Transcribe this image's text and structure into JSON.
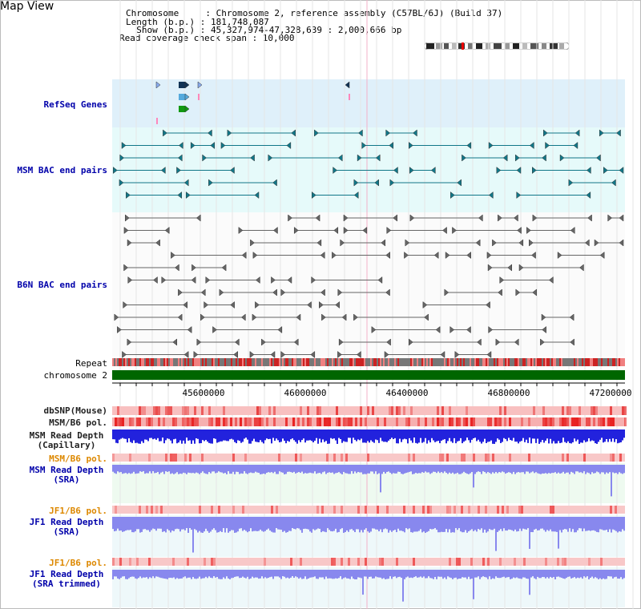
{
  "page_title": "Map View",
  "info": {
    "chromosome_line": "Chromosome     : Chromosome 2, reference assembly (C57BL/6J) (Build 37)",
    "length_line": "Length (b.p.) : 181,748,087",
    "show_line": "  Show (b.p.) : 45,327,974-47,328,639 : 2,000,666 bp",
    "coverage_line": "Read coverage check span : 10,000"
  },
  "track_labels": {
    "refseq": "RefSeq Genes",
    "msm_bac": "MSM BAC end pairs",
    "b6n_bac": "B6N BAC end pairs",
    "repeat": "Repeat",
    "chromosome": "chromosome 2",
    "dbsnp": "dbSNP(Mouse)",
    "msm_b6_pol": "MSM/B6 pol.",
    "msm_depth_cap_1": "MSM Read Depth",
    "msm_depth_cap_2": "(Capillary)",
    "msm_b6_pol_2": "MSM/B6 pol.",
    "msm_depth_sra_1": "MSM Read Depth",
    "msm_depth_sra_2": "(SRA)",
    "jf1_b6_pol": "JF1/B6 pol.",
    "jf1_depth_sra_1": "JF1 Read Depth",
    "jf1_depth_sra_2": "(SRA)",
    "jf1_b6_pol_2": "JF1/B6 pol.",
    "jf1_depth_trim_1": "JF1 Read Depth",
    "jf1_depth_trim_2": "(SRA trimmed)"
  },
  "axis_ticks": [
    "45600000",
    "46000000",
    "46400000",
    "46800000",
    "47200000"
  ],
  "colors": {
    "label_blue": "#0000aa",
    "label_orange": "#dd8800",
    "refseq_bg": "#dff0fa",
    "msm_bac_bg": "#e6fafa",
    "chromosome_green": "#006600",
    "depth_blue": "#2222dd",
    "depth_light_blue": "#8888ee",
    "msm_bac_color": "#117788",
    "b6n_bac_color": "#666666",
    "pol_red": "#ee3333"
  }
}
